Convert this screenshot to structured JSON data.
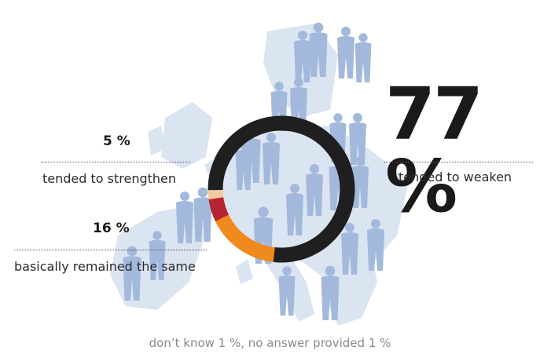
{
  "chart_data": {
    "type": "pie",
    "style": "donut",
    "slices": [
      {
        "label": "tended to weaken",
        "value": 77,
        "display": "77 %",
        "color": "#1f1f1f"
      },
      {
        "label": "basically remained the same",
        "value": 16,
        "display": "16 %",
        "color": "#f08a1c"
      },
      {
        "label": "tended to strengthen",
        "value": 5,
        "display": "5 %",
        "color": "#b5242f"
      },
      {
        "label": "don’t know",
        "value": 1,
        "color": "#f5c9a0"
      },
      {
        "label": "no answer provided",
        "value": 1,
        "color": "#f5c9a0"
      }
    ],
    "annotations": {
      "footnote": "don’t know 1 %, no answer provided 1 %"
    }
  },
  "background": {
    "map_color": "#d6e0ef",
    "silhouette_color": "#9fb5d9"
  }
}
